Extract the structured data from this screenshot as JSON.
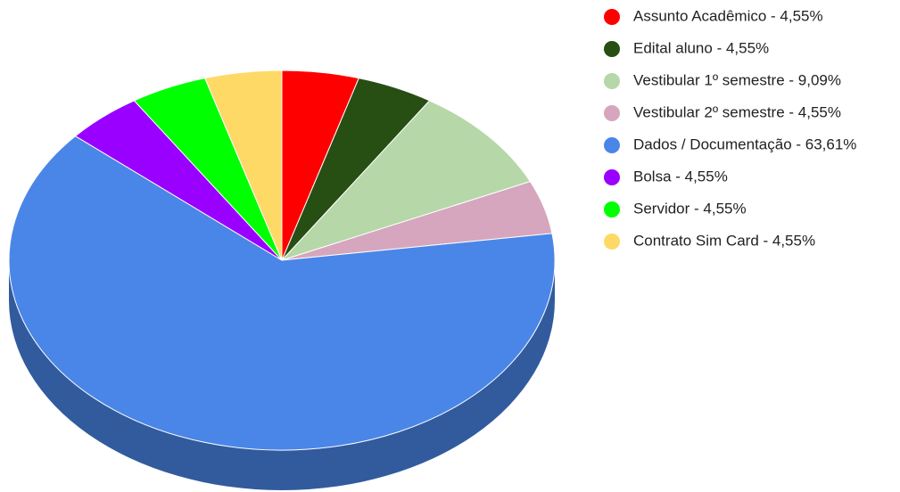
{
  "chart_data": {
    "type": "pie",
    "categories": [
      "Assunto Acadêmico - 4,55%",
      "Edital aluno - 4,55%",
      "Vestibular 1º semestre - 9,09%",
      "Vestibular 2º semestre - 4,55%",
      "Dados / Documentação - 63,61%",
      "Bolsa - 4,55%",
      "Servidor - 4,55%",
      "Contrato Sim Card - 4,55%"
    ],
    "values": [
      4.55,
      4.55,
      9.09,
      4.55,
      63.61,
      4.55,
      4.55,
      4.55
    ],
    "colors": [
      "#ff0000",
      "#274e13",
      "#b6d7a8",
      "#d5a6bd",
      "#4a86e8",
      "#9900ff",
      "#00ff00",
      "#ffd966"
    ],
    "legend": "right"
  }
}
